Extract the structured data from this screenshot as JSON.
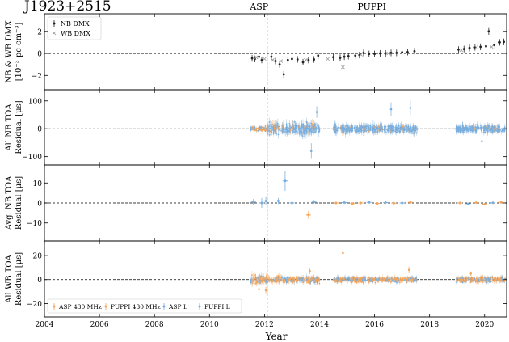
{
  "figure": {
    "title": "J1923+2515",
    "x_label": "Year",
    "backend_labels": [
      "ASP",
      "PUPPI"
    ],
    "backend_switch_year": 2012.1
  },
  "colors": {
    "nb_dmx": "#222222",
    "wb_dmx": "#999999",
    "asp_430": "#f5a55a",
    "puppi_430": "#f5a55a",
    "asp_l": "#79aede",
    "puppi_l": "#79aede"
  },
  "chart_data": [
    {
      "type": "scatter",
      "panel": "dmx",
      "ylabel_lines": [
        "NB & WB DMX",
        "[10⁻³ pc cm⁻³]"
      ],
      "xlim": [
        2004,
        2020.8
      ],
      "ylim": [
        -3.3,
        3.6
      ],
      "yticks": [
        -2,
        0,
        2
      ],
      "legend": {
        "position": "top-left",
        "entries": [
          "NB DMX",
          "WB DMX"
        ]
      },
      "series": [
        {
          "name": "NB DMX",
          "color": "#222222",
          "points": [
            [
              2011.55,
              -0.45
            ],
            [
              2011.65,
              -0.5
            ],
            [
              2011.8,
              -0.3
            ],
            [
              2011.9,
              -0.6
            ],
            [
              2012.25,
              -0.3
            ],
            [
              2012.4,
              -0.7
            ],
            [
              2012.55,
              -1.0
            ],
            [
              2012.7,
              -1.9
            ],
            [
              2012.85,
              -0.6
            ],
            [
              2013.0,
              -0.5
            ],
            [
              2013.2,
              -0.55
            ],
            [
              2013.4,
              -0.8
            ],
            [
              2013.6,
              -0.6
            ],
            [
              2013.8,
              -0.55
            ],
            [
              2013.95,
              -0.2
            ],
            [
              2014.5,
              -0.35
            ],
            [
              2014.75,
              -0.4
            ],
            [
              2014.9,
              -0.3
            ],
            [
              2015.05,
              -0.25
            ],
            [
              2015.3,
              -0.2
            ],
            [
              2015.45,
              -0.15
            ],
            [
              2015.6,
              0.05
            ],
            [
              2015.8,
              -0.05
            ],
            [
              2016.0,
              -0.05
            ],
            [
              2016.2,
              0.0
            ],
            [
              2016.4,
              0.0
            ],
            [
              2016.6,
              0.05
            ],
            [
              2016.8,
              0.05
            ],
            [
              2017.0,
              0.1
            ],
            [
              2017.2,
              0.12
            ],
            [
              2017.45,
              0.2
            ],
            [
              2019.05,
              0.35
            ],
            [
              2019.25,
              0.4
            ],
            [
              2019.45,
              0.5
            ],
            [
              2019.65,
              0.55
            ],
            [
              2019.85,
              0.6
            ],
            [
              2020.05,
              0.65
            ],
            [
              2020.15,
              2.0
            ],
            [
              2020.35,
              0.75
            ],
            [
              2020.55,
              1.0
            ],
            [
              2020.7,
              1.05
            ]
          ]
        },
        {
          "name": "WB DMX",
          "color": "#999999",
          "points": [
            [
              2011.7,
              -0.35
            ],
            [
              2012.0,
              -0.5
            ],
            [
              2012.3,
              -0.6
            ],
            [
              2012.6,
              -0.7
            ],
            [
              2013.5,
              -0.6
            ],
            [
              2014.3,
              -0.5
            ],
            [
              2014.85,
              -1.25
            ],
            [
              2015.5,
              -0.1
            ],
            [
              2016.5,
              0.0
            ],
            [
              2019.15,
              0.3
            ],
            [
              2019.7,
              0.55
            ],
            [
              2020.25,
              0.6
            ]
          ]
        }
      ]
    },
    {
      "type": "scatter",
      "panel": "nb_all",
      "ylabel_lines": [
        "All NB TOA",
        "Residual [μs]"
      ],
      "xlim": [
        2004,
        2020.8
      ],
      "ylim": [
        -130,
        140
      ],
      "yticks": [
        -100,
        0,
        100
      ],
      "spans": [
        [
          2011.5,
          2012.1
        ],
        [
          2012.1,
          2014.0
        ],
        [
          2014.5,
          2017.55
        ],
        [
          2018.95,
          2020.75
        ]
      ],
      "noise_amplitude": [
        10,
        25,
        20,
        18
      ],
      "outliers": [
        [
          2013.7,
          -80
        ],
        [
          2013.9,
          60
        ],
        [
          2016.6,
          70
        ],
        [
          2017.3,
          75
        ],
        [
          2019.9,
          -45
        ]
      ],
      "series": [
        {
          "name": "ASP 430 MHz",
          "color": "#f5a55a"
        },
        {
          "name": "ASP L",
          "color": "#79aede"
        }
      ]
    },
    {
      "type": "scatter",
      "panel": "nb_avg",
      "ylabel_lines": [
        "Avg. NB TOA",
        "Residual [μs]"
      ],
      "xlim": [
        2004,
        2020.8
      ],
      "ylim": [
        -19,
        19
      ],
      "yticks": [
        -10,
        0,
        10
      ],
      "points": [
        {
          "x": 2011.6,
          "y": 0.5,
          "err": 1.5,
          "color": "#79aede"
        },
        {
          "x": 2011.9,
          "y": 0.0,
          "err": 2.5,
          "color": "#79aede"
        },
        {
          "x": 2012.05,
          "y": 1.0,
          "err": 2.0,
          "color": "#79aede"
        },
        {
          "x": 2012.5,
          "y": 1.0,
          "err": 1.5,
          "color": "#79aede"
        },
        {
          "x": 2012.75,
          "y": 11.0,
          "err": 5.0,
          "color": "#79aede"
        },
        {
          "x": 2013.0,
          "y": 0.0,
          "err": 1.0,
          "color": "#79aede"
        },
        {
          "x": 2013.6,
          "y": -6.0,
          "err": 2.0,
          "color": "#f5a55a"
        },
        {
          "x": 2013.8,
          "y": 0.5,
          "err": 1.0,
          "color": "#79aede"
        },
        {
          "x": 2014.6,
          "y": 0.0,
          "err": 0.6,
          "color": "#f5a55a"
        },
        {
          "x": 2014.9,
          "y": 0.2,
          "err": 0.6,
          "color": "#79aede"
        },
        {
          "x": 2015.2,
          "y": -0.3,
          "err": 0.5,
          "color": "#f5a55a"
        },
        {
          "x": 2015.5,
          "y": 0.0,
          "err": 0.5,
          "color": "#f5a55a"
        },
        {
          "x": 2015.8,
          "y": 0.3,
          "err": 0.5,
          "color": "#79aede"
        },
        {
          "x": 2016.1,
          "y": -0.2,
          "err": 0.4,
          "color": "#f5a55a"
        },
        {
          "x": 2016.4,
          "y": 0.2,
          "err": 0.4,
          "color": "#79aede"
        },
        {
          "x": 2016.7,
          "y": -0.1,
          "err": 0.4,
          "color": "#f5a55a"
        },
        {
          "x": 2017.0,
          "y": 0.0,
          "err": 0.4,
          "color": "#79aede"
        },
        {
          "x": 2017.3,
          "y": 0.3,
          "err": 0.4,
          "color": "#f5a55a"
        },
        {
          "x": 2019.1,
          "y": 0.0,
          "err": 0.5,
          "color": "#f5a55a"
        },
        {
          "x": 2019.4,
          "y": -0.4,
          "err": 0.5,
          "color": "#79aede"
        },
        {
          "x": 2019.7,
          "y": 0.2,
          "err": 0.5,
          "color": "#f5a55a"
        },
        {
          "x": 2020.0,
          "y": -0.6,
          "err": 0.6,
          "color": "#f5a55a"
        },
        {
          "x": 2020.3,
          "y": 0.1,
          "err": 0.5,
          "color": "#79aede"
        },
        {
          "x": 2020.6,
          "y": 0.3,
          "err": 0.5,
          "color": "#f5a55a"
        }
      ]
    },
    {
      "type": "scatter",
      "panel": "wb_all",
      "ylabel_lines": [
        "All WB TOA",
        "Residual [μs]"
      ],
      "xlim": [
        2004,
        2020.8
      ],
      "ylim": [
        -31,
        32
      ],
      "yticks": [
        -20,
        0,
        20
      ],
      "xticks": [
        2004,
        2006,
        2008,
        2010,
        2012,
        2014,
        2016,
        2018,
        2020
      ],
      "spans": [
        [
          2011.5,
          2012.1
        ],
        [
          2012.1,
          2014.0
        ],
        [
          2014.5,
          2017.55
        ],
        [
          2018.95,
          2020.75
        ]
      ],
      "noise_amplitude": [
        5,
        3.5,
        3,
        3
      ],
      "outliers": [
        [
          2011.8,
          -8
        ],
        [
          2012.05,
          -9
        ],
        [
          2013.65,
          7
        ],
        [
          2014.85,
          22
        ],
        [
          2017.25,
          8
        ],
        [
          2019.5,
          5
        ]
      ],
      "legend": {
        "position": "bottom-left",
        "entries": [
          "ASP 430 MHz",
          "PUPPI 430 MHz",
          "ASP L",
          "PUPPI L"
        ]
      },
      "series": [
        {
          "name": "ASP 430 MHz",
          "color": "#f5a55a"
        },
        {
          "name": "PUPPI 430 MHz",
          "color": "#f5a55a"
        },
        {
          "name": "ASP L",
          "color": "#79aede"
        },
        {
          "name": "PUPPI L",
          "color": "#79aede"
        }
      ]
    }
  ]
}
